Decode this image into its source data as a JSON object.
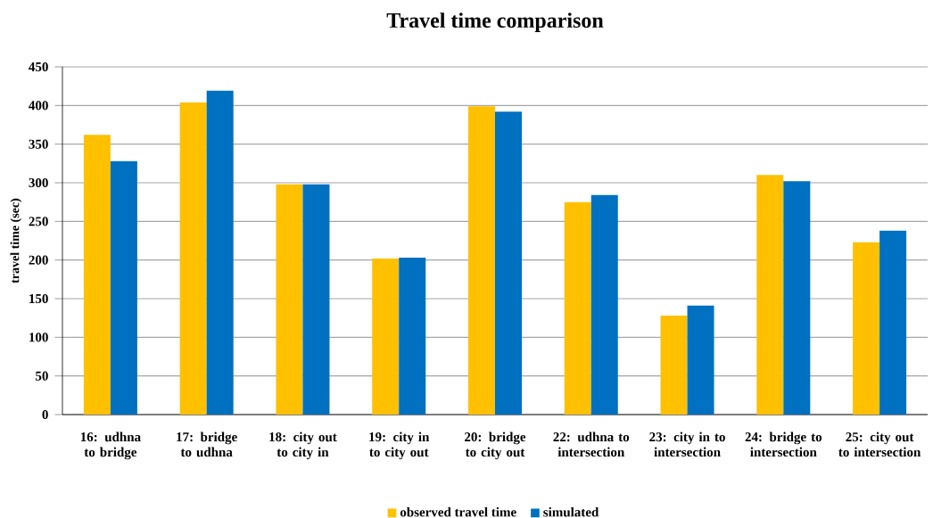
{
  "chart_data": {
    "type": "bar",
    "title": "Travel time comparison",
    "ylabel": "travel time (sec)",
    "categories": [
      "16: udhna to bridge",
      "17: bridge to udhna",
      "18: city out to city in",
      "19: city in to city out",
      "20: bridge to city out",
      "22: udhna to intersection",
      "23: city in to intersection",
      "24: bridge to intersection",
      "25: city out to intersection"
    ],
    "series": [
      {
        "name": "observed travel time",
        "color": "#ffc000",
        "values": [
          362,
          404,
          298,
          202,
          399,
          275,
          128,
          310,
          223
        ]
      },
      {
        "name": "simulated",
        "color": "#0070c0",
        "values": [
          328,
          419,
          298,
          203,
          392,
          284,
          141,
          302,
          238
        ]
      }
    ],
    "ylim": [
      0,
      450
    ],
    "yticks": [
      0,
      50,
      100,
      150,
      200,
      250,
      300,
      350,
      400,
      450
    ],
    "grid": "y",
    "legend": "bottom"
  }
}
